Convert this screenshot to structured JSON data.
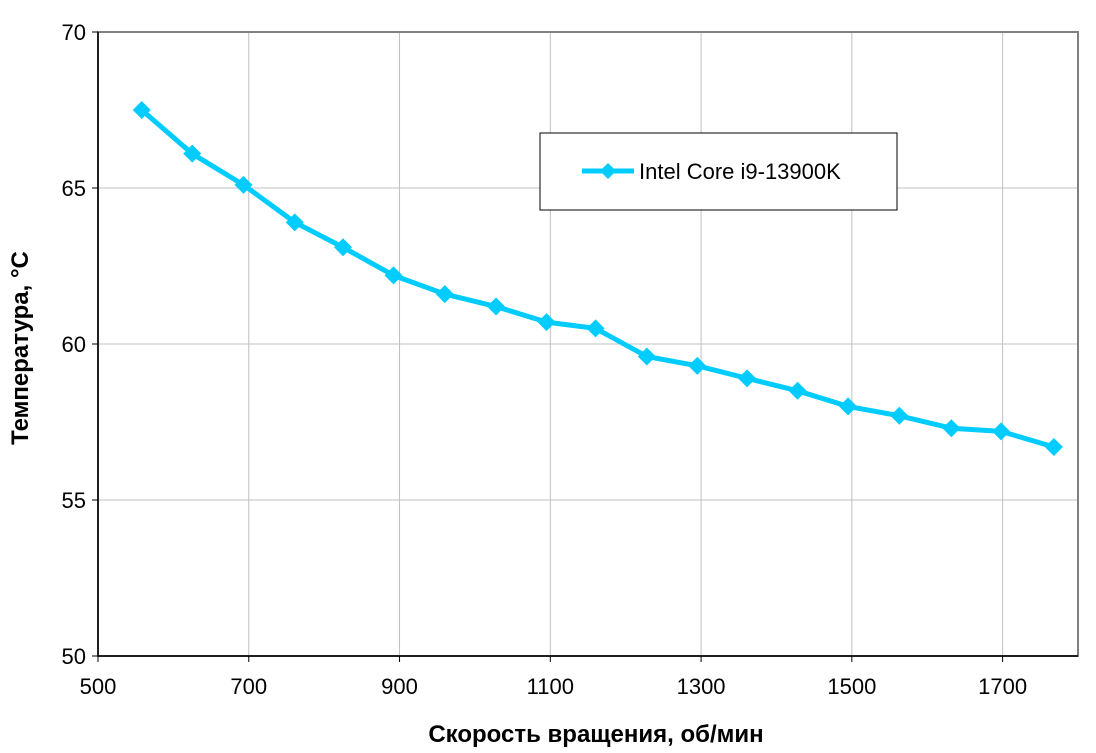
{
  "chart_data": {
    "type": "line",
    "xlabel": "Скорость вращения, об/мин",
    "ylabel": "Температура, °С",
    "xlim": [
      500,
      1800
    ],
    "ylim": [
      50,
      70
    ],
    "x_ticks": [
      500,
      700,
      900,
      1100,
      1300,
      1500,
      1700
    ],
    "y_ticks": [
      50,
      55,
      60,
      65,
      70
    ],
    "grid": true,
    "legend_position": "top-right",
    "series": [
      {
        "name": "Intel Core i9-13900K",
        "color": "#00CCFF",
        "marker": "diamond",
        "x": [
          558,
          625,
          693,
          761,
          825,
          892,
          960,
          1028,
          1095,
          1160,
          1228,
          1295,
          1361,
          1428,
          1495,
          1563,
          1632,
          1698,
          1768
        ],
        "y": [
          67.5,
          66.1,
          65.1,
          63.9,
          63.1,
          62.2,
          61.6,
          61.2,
          60.7,
          60.5,
          59.6,
          59.3,
          58.9,
          58.5,
          58.0,
          57.7,
          57.3,
          57.2,
          56.7
        ]
      }
    ]
  }
}
